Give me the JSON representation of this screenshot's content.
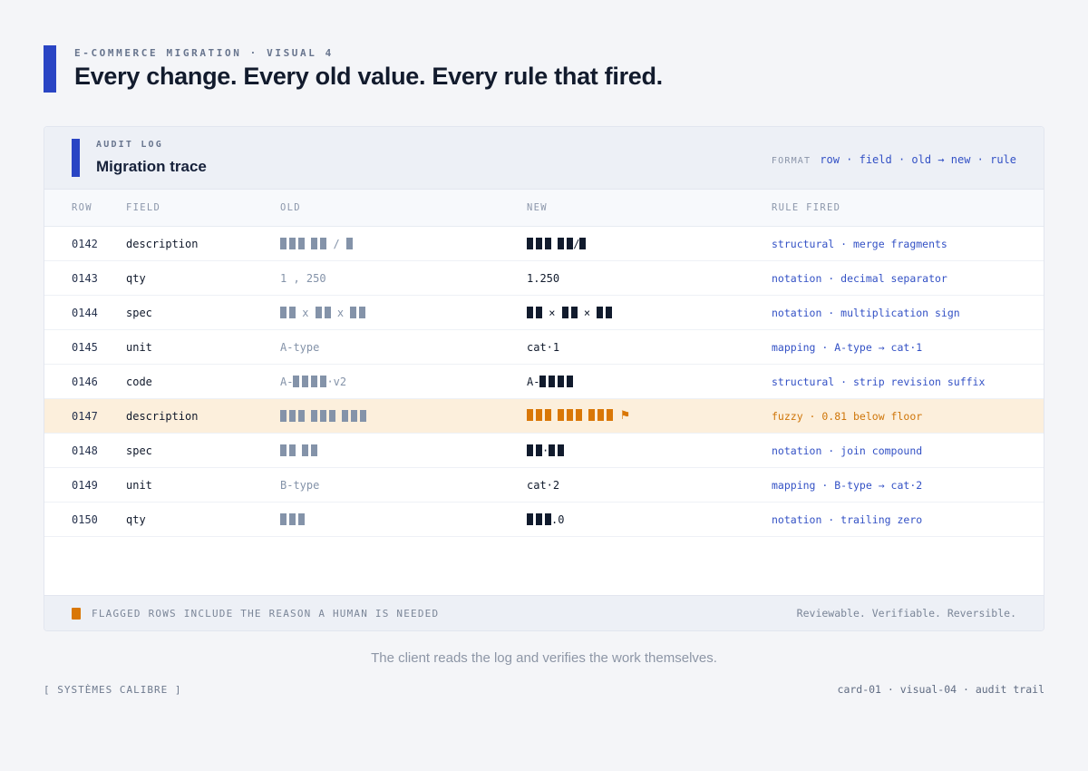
{
  "page": {
    "eyebrow": "E-COMMERCE MIGRATION · VISUAL 4",
    "title": "Every change. Every old value. Every rule that fired.",
    "caption": "The client reads the log and verifies the work themselves.",
    "footer_left": "[ SYSTÈMES CALIBRE ]",
    "footer_right": "card-01 · visual-04 · audit trail"
  },
  "card": {
    "eyebrow": "AUDIT LOG",
    "title": "Migration trace",
    "format_label": "FORMAT",
    "format_value": "row · field · old → new · rule",
    "columns": [
      "ROW",
      "FIELD",
      "OLD",
      "NEW",
      "RULE FIRED"
    ],
    "rows": [
      {
        "row": "0142",
        "field": "description",
        "old": [
          {
            "t": "b",
            "n": 3,
            "c": "gray"
          },
          {
            "t": "x",
            "v": " ",
            "c": "gray"
          },
          {
            "t": "b",
            "n": 2,
            "c": "gray"
          },
          {
            "t": "x",
            "v": " / ",
            "c": "gray"
          },
          {
            "t": "b",
            "n": 1,
            "c": "gray"
          }
        ],
        "new": [
          {
            "t": "b",
            "n": 3,
            "c": "dark"
          },
          {
            "t": "x",
            "v": " ",
            "c": "dark"
          },
          {
            "t": "b",
            "n": 2,
            "c": "dark"
          },
          {
            "t": "x",
            "v": "/",
            "c": "dark"
          },
          {
            "t": "b",
            "n": 1,
            "c": "dark"
          }
        ],
        "rule": "structural · merge fragments",
        "flagged": false
      },
      {
        "row": "0143",
        "field": "qty",
        "old": [
          {
            "t": "x",
            "v": "1 , 250",
            "c": "gray"
          }
        ],
        "new": [
          {
            "t": "x",
            "v": "1.250",
            "c": "dark"
          }
        ],
        "rule": "notation · decimal separator",
        "flagged": false
      },
      {
        "row": "0144",
        "field": "spec",
        "old": [
          {
            "t": "b",
            "n": 2,
            "c": "gray"
          },
          {
            "t": "x",
            "v": " x ",
            "c": "gray"
          },
          {
            "t": "b",
            "n": 2,
            "c": "gray"
          },
          {
            "t": "x",
            "v": " x ",
            "c": "gray"
          },
          {
            "t": "b",
            "n": 2,
            "c": "gray"
          }
        ],
        "new": [
          {
            "t": "b",
            "n": 2,
            "c": "dark"
          },
          {
            "t": "x",
            "v": " × ",
            "c": "dark"
          },
          {
            "t": "b",
            "n": 2,
            "c": "dark"
          },
          {
            "t": "x",
            "v": " × ",
            "c": "dark"
          },
          {
            "t": "b",
            "n": 2,
            "c": "dark"
          }
        ],
        "rule": "notation · multiplication sign",
        "flagged": false
      },
      {
        "row": "0145",
        "field": "unit",
        "old": [
          {
            "t": "x",
            "v": "A-type",
            "c": "gray"
          }
        ],
        "new": [
          {
            "t": "x",
            "v": "cat·1",
            "c": "dark"
          }
        ],
        "rule": "mapping · A-type → cat·1",
        "flagged": false
      },
      {
        "row": "0146",
        "field": "code",
        "old": [
          {
            "t": "x",
            "v": "A-",
            "c": "gray"
          },
          {
            "t": "b",
            "n": 4,
            "c": "gray"
          },
          {
            "t": "x",
            "v": "·v2",
            "c": "gray"
          }
        ],
        "new": [
          {
            "t": "x",
            "v": "A-",
            "c": "dark"
          },
          {
            "t": "b",
            "n": 4,
            "c": "dark"
          }
        ],
        "rule": "structural · strip revision suffix",
        "flagged": false
      },
      {
        "row": "0147",
        "field": "description",
        "old": [
          {
            "t": "b",
            "n": 3,
            "c": "gray"
          },
          {
            "t": "x",
            "v": " ",
            "c": "gray"
          },
          {
            "t": "b",
            "n": 3,
            "c": "gray"
          },
          {
            "t": "x",
            "v": " ",
            "c": "gray"
          },
          {
            "t": "b",
            "n": 3,
            "c": "gray"
          }
        ],
        "new": [
          {
            "t": "b",
            "n": 3,
            "c": "orange"
          },
          {
            "t": "x",
            "v": " ",
            "c": "orange"
          },
          {
            "t": "b",
            "n": 3,
            "c": "orange"
          },
          {
            "t": "x",
            "v": " ",
            "c": "orange"
          },
          {
            "t": "b",
            "n": 3,
            "c": "orange"
          },
          {
            "t": "x",
            "v": " ",
            "c": "orange"
          },
          {
            "t": "flag",
            "v": "⚑",
            "c": "orange"
          }
        ],
        "rule": "fuzzy · 0.81 below floor",
        "flagged": true
      },
      {
        "row": "0148",
        "field": "spec",
        "old": [
          {
            "t": "b",
            "n": 2,
            "c": "gray"
          },
          {
            "t": "x",
            "v": " ",
            "c": "gray"
          },
          {
            "t": "b",
            "n": 2,
            "c": "gray"
          }
        ],
        "new": [
          {
            "t": "b",
            "n": 2,
            "c": "dark"
          },
          {
            "t": "x",
            "v": "·",
            "c": "dark"
          },
          {
            "t": "b",
            "n": 2,
            "c": "dark"
          }
        ],
        "rule": "notation · join compound",
        "flagged": false
      },
      {
        "row": "0149",
        "field": "unit",
        "old": [
          {
            "t": "x",
            "v": "B-type",
            "c": "gray"
          }
        ],
        "new": [
          {
            "t": "x",
            "v": "cat·2",
            "c": "dark"
          }
        ],
        "rule": "mapping · B-type → cat·2",
        "flagged": false
      },
      {
        "row": "0150",
        "field": "qty",
        "old": [
          {
            "t": "b",
            "n": 3,
            "c": "gray"
          }
        ],
        "new": [
          {
            "t": "b",
            "n": 3,
            "c": "dark"
          },
          {
            "t": "x",
            "v": ".0",
            "c": "dark"
          }
        ],
        "rule": "notation · trailing zero",
        "flagged": false
      }
    ],
    "footnote": "FLAGGED ROWS INCLUDE THE REASON A HUMAN IS NEEDED",
    "footnote_right": "Reviewable. Verifiable. Reversible."
  },
  "colors": {
    "accent_blue": "#2a45c4",
    "rule_blue": "#3351c5",
    "flag_orange": "#d97706",
    "flag_row_bg": "#fcefdc",
    "block_gray": "#8493a9",
    "block_dark": "#111b2d"
  }
}
